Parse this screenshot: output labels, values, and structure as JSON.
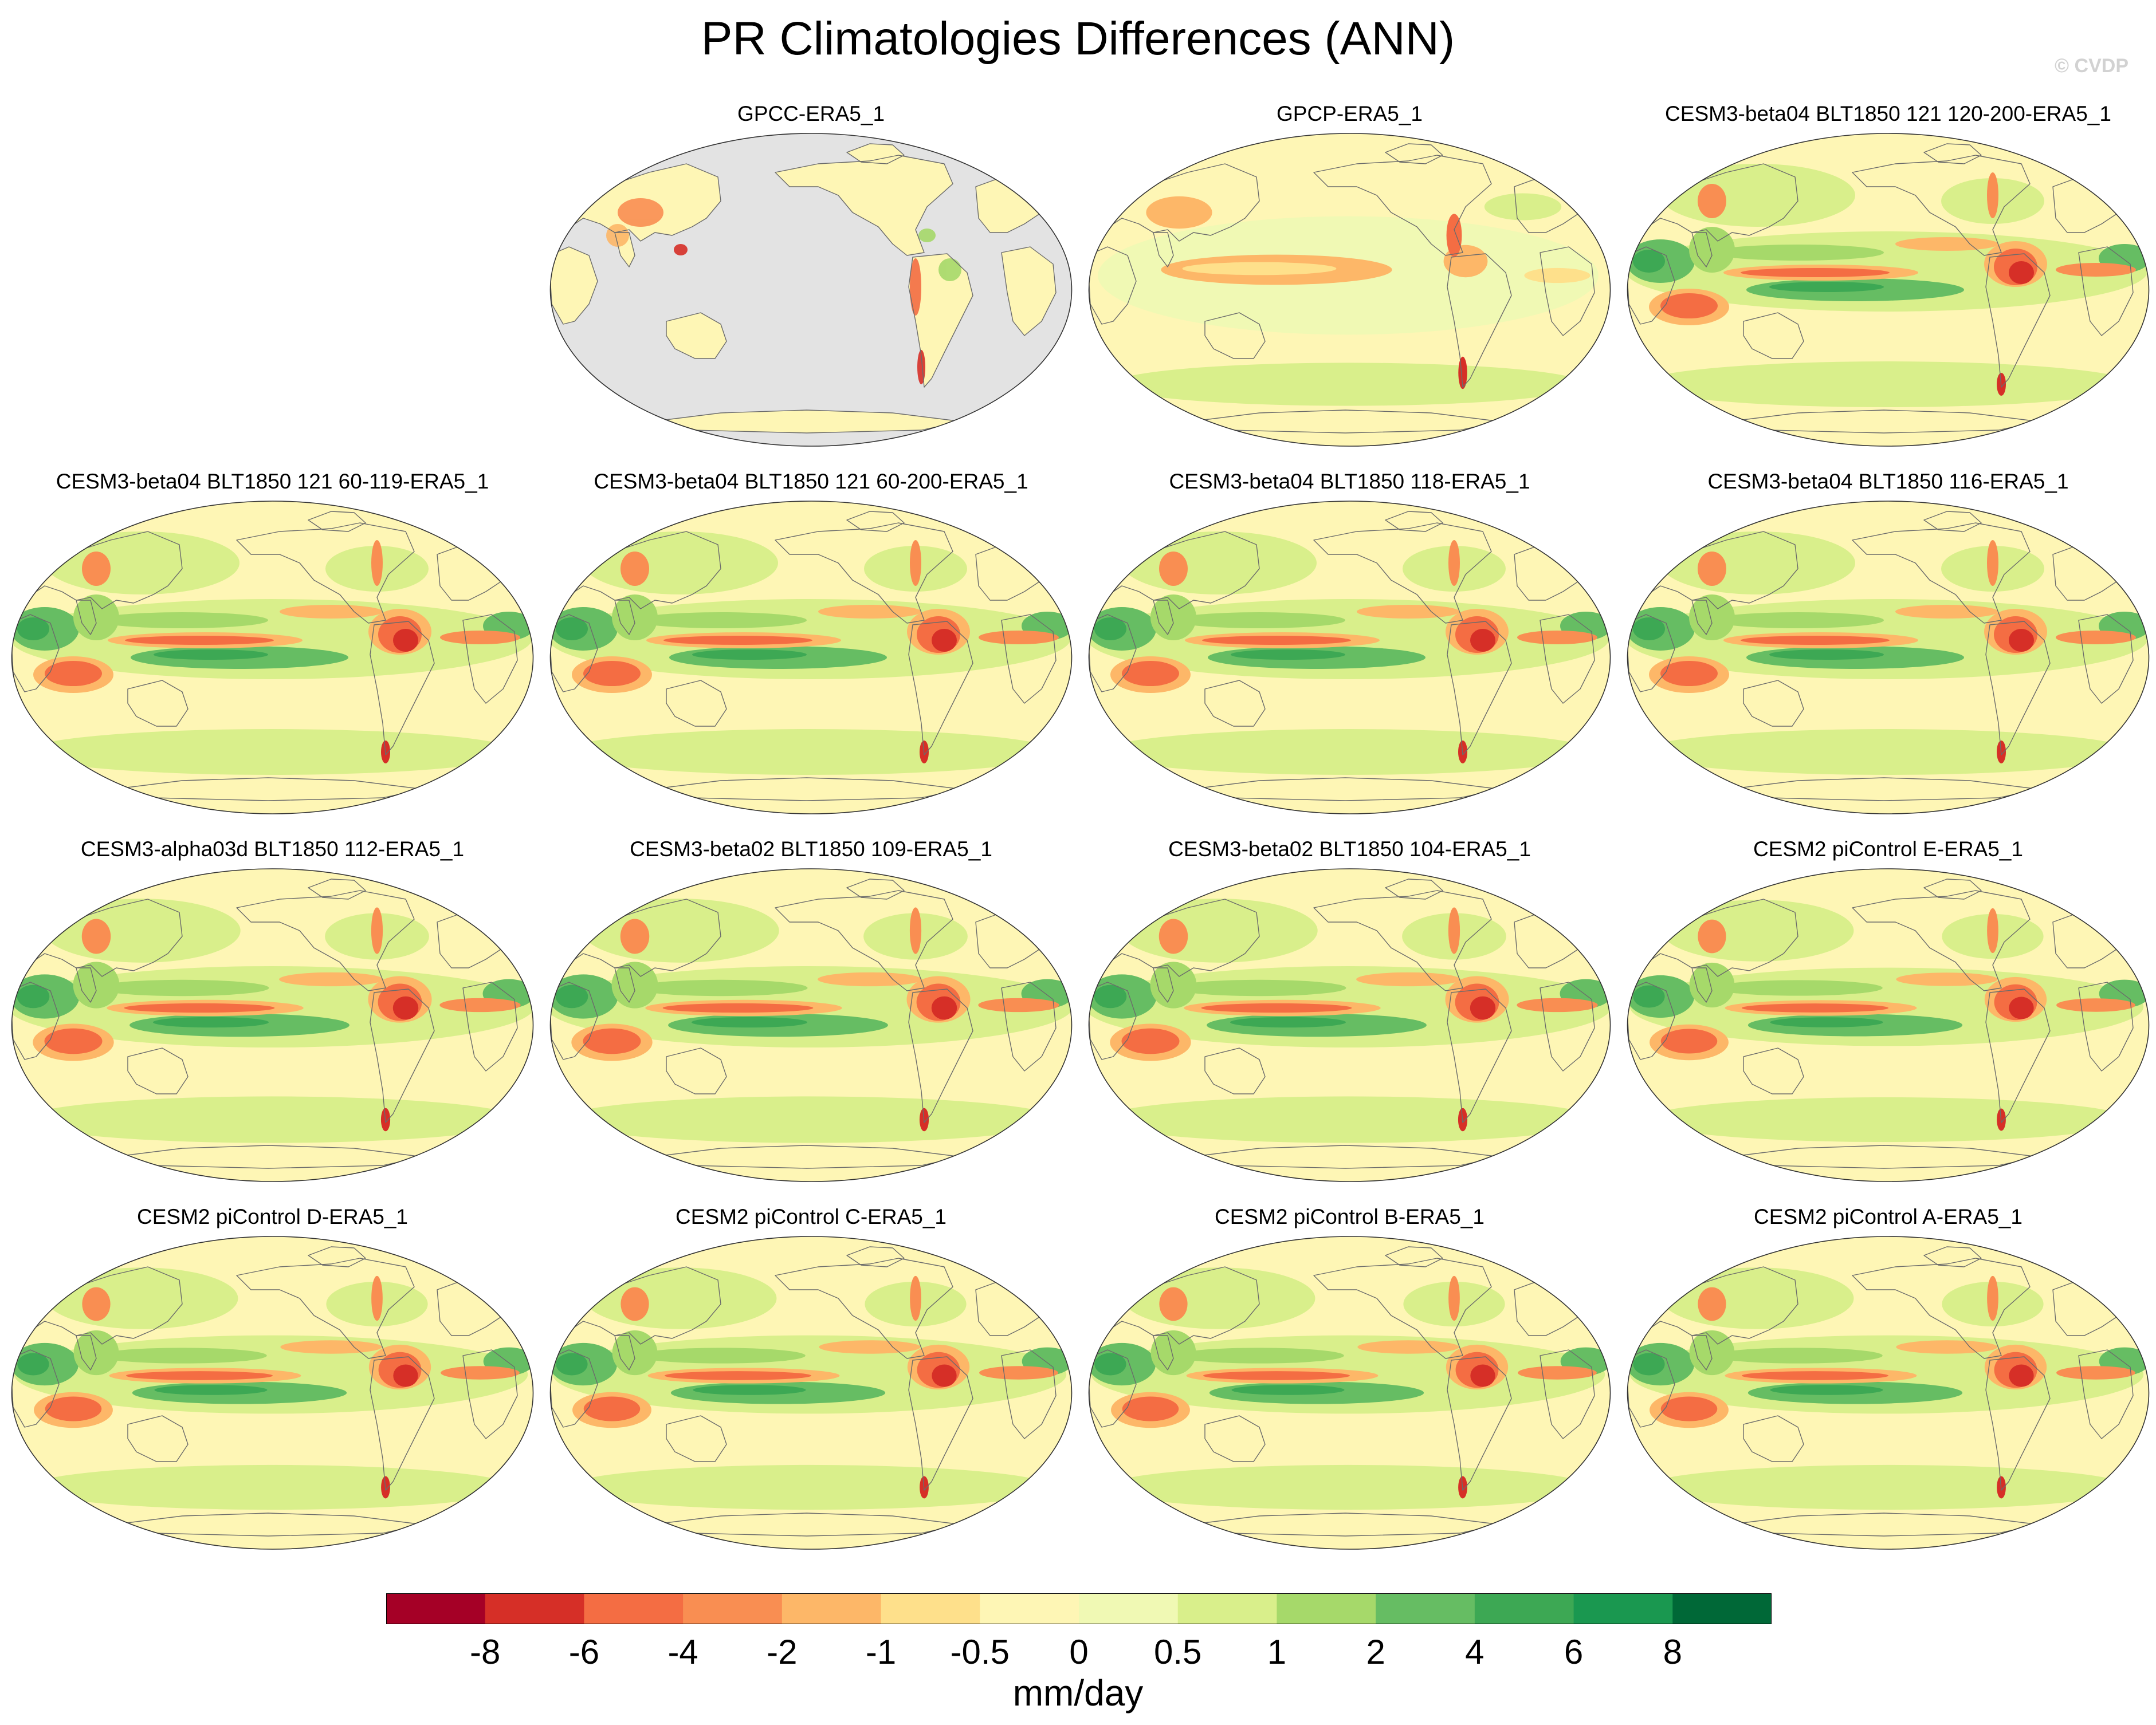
{
  "title": "PR Climatologies Differences (ANN)",
  "watermark": "© CVDP",
  "colors": {
    "ocean_gray": "#e3e3e3",
    "coast": "#6b6b6b",
    "background": "#ffffff"
  },
  "panels": [
    {
      "title": "GPCC-ERA5_1",
      "land_only": true,
      "intensity": 0.4
    },
    {
      "title": "GPCP-ERA5_1",
      "land_only": false,
      "intensity": 0.6
    },
    {
      "title": "CESM3-beta04 BLT1850 121 120-200-ERA5_1",
      "land_only": false,
      "intensity": 1.0
    },
    {
      "title": "CESM3-beta04 BLT1850 121 60-119-ERA5_1",
      "land_only": false,
      "intensity": 1.0
    },
    {
      "title": "CESM3-beta04 BLT1850 121 60-200-ERA5_1",
      "land_only": false,
      "intensity": 1.0
    },
    {
      "title": "CESM3-beta04 BLT1850 118-ERA5_1",
      "land_only": false,
      "intensity": 1.0
    },
    {
      "title": "CESM3-beta04 BLT1850 116-ERA5_1",
      "land_only": false,
      "intensity": 1.0
    },
    {
      "title": "CESM3-alpha03d BLT1850 112-ERA5_1",
      "land_only": false,
      "intensity": 1.1
    },
    {
      "title": "CESM3-beta02 BLT1850 109-ERA5_1",
      "land_only": false,
      "intensity": 1.1
    },
    {
      "title": "CESM3-beta02 BLT1850 104-ERA5_1",
      "land_only": false,
      "intensity": 1.1
    },
    {
      "title": "CESM2 piControl E-ERA5_1",
      "land_only": false,
      "intensity": 0.85
    },
    {
      "title": "CESM2 piControl D-ERA5_1",
      "land_only": false,
      "intensity": 0.85
    },
    {
      "title": "CESM2 piControl C-ERA5_1",
      "land_only": false,
      "intensity": 0.85
    },
    {
      "title": "CESM2 piControl B-ERA5_1",
      "land_only": false,
      "intensity": 0.85
    },
    {
      "title": "CESM2 piControl A-ERA5_1",
      "land_only": false,
      "intensity": 0.85
    }
  ],
  "colorbar": {
    "unit": "mm/day",
    "tick_labels": [
      "-8",
      "-6",
      "-4",
      "-2",
      "-1",
      "-0.5",
      "0",
      "0.5",
      "1",
      "2",
      "4",
      "6",
      "8"
    ],
    "colors": [
      "#a50026",
      "#d62f27",
      "#f46d43",
      "#f98e52",
      "#fdb768",
      "#fee08b",
      "#fef6b5",
      "#f0f9b4",
      "#d9ef8b",
      "#a6d96a",
      "#66bd63",
      "#3da854",
      "#1a9850",
      "#006837"
    ]
  }
}
